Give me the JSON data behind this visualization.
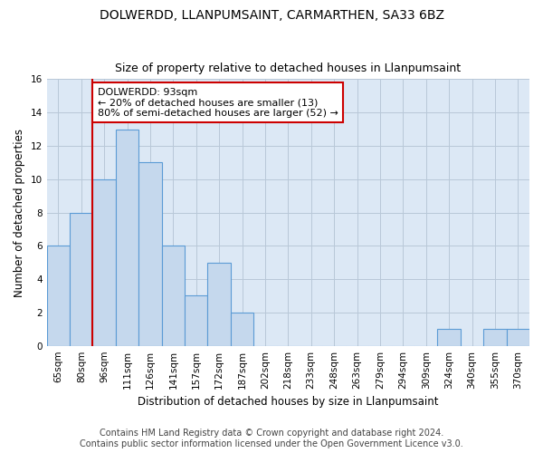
{
  "title": "DOLWERDD, LLANPUMSAINT, CARMARTHEN, SA33 6BZ",
  "subtitle": "Size of property relative to detached houses in Llanpumsaint",
  "xlabel": "Distribution of detached houses by size in Llanpumsaint",
  "ylabel": "Number of detached properties",
  "categories": [
    "65sqm",
    "80sqm",
    "96sqm",
    "111sqm",
    "126sqm",
    "141sqm",
    "157sqm",
    "172sqm",
    "187sqm",
    "202sqm",
    "218sqm",
    "233sqm",
    "248sqm",
    "263sqm",
    "279sqm",
    "294sqm",
    "309sqm",
    "324sqm",
    "340sqm",
    "355sqm",
    "370sqm"
  ],
  "values": [
    6,
    8,
    10,
    13,
    11,
    6,
    3,
    5,
    2,
    0,
    0,
    0,
    0,
    0,
    0,
    0,
    0,
    1,
    0,
    1,
    1
  ],
  "bar_color": "#c5d8ed",
  "bar_edge_color": "#5b9bd5",
  "annotation_text_line1": "DOLWERDD: 93sqm",
  "annotation_text_line2": "← 20% of detached houses are smaller (13)",
  "annotation_text_line3": "80% of semi-detached houses are larger (52) →",
  "annotation_box_color": "#ffffff",
  "annotation_box_edge_color": "#cc0000",
  "vline_color": "#cc0000",
  "vline_x_index": 1.5,
  "ylim": [
    0,
    16
  ],
  "yticks": [
    0,
    2,
    4,
    6,
    8,
    10,
    12,
    14,
    16
  ],
  "footer_line1": "Contains HM Land Registry data © Crown copyright and database right 2024.",
  "footer_line2": "Contains public sector information licensed under the Open Government Licence v3.0.",
  "background_color": "#ffffff",
  "ax_background_color": "#dce8f5",
  "grid_color": "#b8c8d8",
  "title_fontsize": 10,
  "subtitle_fontsize": 9,
  "axis_label_fontsize": 8.5,
  "tick_fontsize": 7.5,
  "footer_fontsize": 7,
  "annotation_fontsize": 8
}
